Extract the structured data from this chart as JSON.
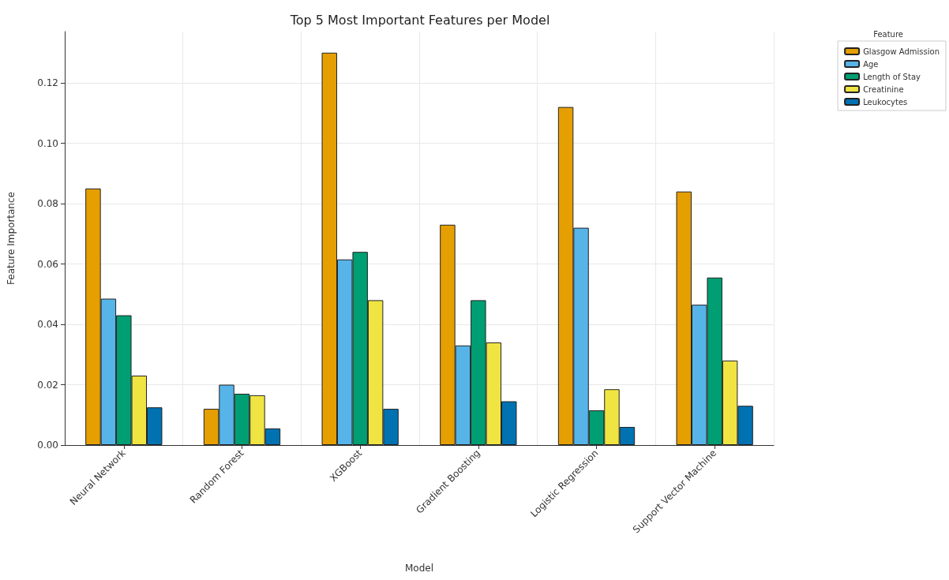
{
  "chart_data": {
    "type": "bar",
    "title": "Top 5 Most Important Features per Model",
    "xlabel": "Model",
    "ylabel": "Feature Importance",
    "legend_title": "Feature",
    "categories": [
      "Neural Network",
      "Random Forest",
      "XGBoost",
      "Gradient Boosting",
      "Logistic Regression",
      "Support Vector Machine"
    ],
    "series": [
      {
        "name": "Glasgow Admission",
        "color": "#e69f00",
        "values": [
          0.085,
          0.012,
          0.13,
          0.073,
          0.112,
          0.084
        ]
      },
      {
        "name": "Age",
        "color": "#56b4e9",
        "values": [
          0.0485,
          0.02,
          0.0615,
          0.033,
          0.072,
          0.0465
        ]
      },
      {
        "name": "Length of Stay",
        "color": "#009e73",
        "values": [
          0.043,
          0.017,
          0.064,
          0.048,
          0.0115,
          0.0555
        ]
      },
      {
        "name": "Creatinine",
        "color": "#f0e442",
        "values": [
          0.023,
          0.0165,
          0.048,
          0.034,
          0.0185,
          0.028
        ]
      },
      {
        "name": "Leukocytes",
        "color": "#0072b2",
        "values": [
          0.0125,
          0.0055,
          0.012,
          0.0145,
          0.006,
          0.013
        ]
      }
    ],
    "ylim": [
      0,
      0.137
    ],
    "yticks": [
      {
        "value": 0,
        "label": "0.00"
      },
      {
        "value": 0.02,
        "label": "0.02"
      },
      {
        "value": 0.04,
        "label": "0.04"
      },
      {
        "value": 0.06,
        "label": "0.06"
      },
      {
        "value": 0.08,
        "label": "0.08"
      },
      {
        "value": 0.1,
        "label": "0.10"
      },
      {
        "value": 0.12,
        "label": "0.12"
      }
    ],
    "grid": true,
    "legend": "top right"
  }
}
